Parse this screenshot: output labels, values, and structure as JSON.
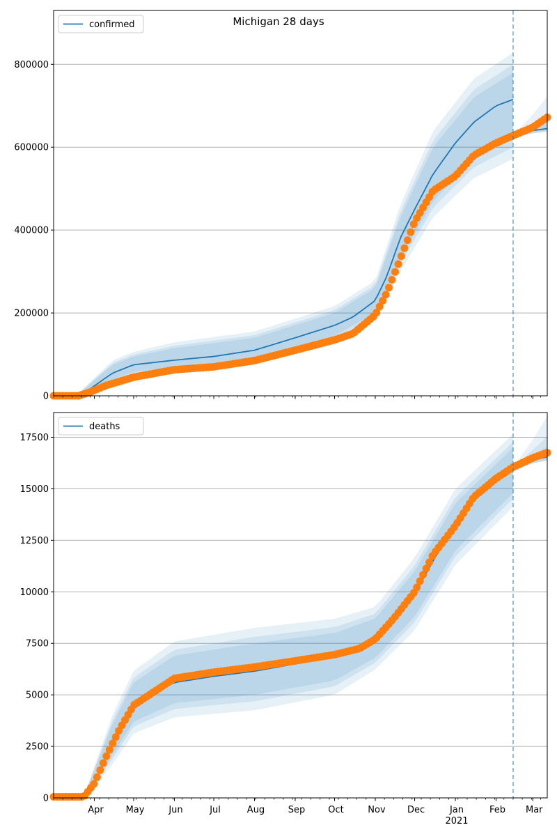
{
  "figure_title": "Michigan 28 days",
  "chart_data": [
    {
      "type": "line",
      "legend": "confirmed",
      "legend_position": "top-left",
      "grid_y": true,
      "ylim": [
        0,
        930000
      ],
      "yticks": [
        {
          "value": 0,
          "label": "0"
        },
        {
          "value": 200000,
          "label": "200000"
        },
        {
          "value": 400000,
          "label": "400000"
        },
        {
          "value": 600000,
          "label": "600000"
        },
        {
          "value": 800000,
          "label": "800000"
        }
      ],
      "model_line": {
        "x": [
          "2020-03-01",
          "2020-03-18",
          "2020-03-28",
          "2020-04-15",
          "2020-05-01",
          "2020-06-01",
          "2020-07-01",
          "2020-08-01",
          "2020-09-01",
          "2020-10-01",
          "2020-10-15",
          "2020-11-01",
          "2020-11-10",
          "2020-11-20",
          "2020-12-01",
          "2020-12-15",
          "2021-01-01",
          "2021-01-15",
          "2021-02-01",
          "2021-02-14"
        ],
        "y": [
          0,
          0,
          15000,
          55000,
          75000,
          86000,
          95000,
          110000,
          140000,
          170000,
          190000,
          230000,
          290000,
          380000,
          450000,
          535000,
          610000,
          660000,
          700000,
          715000
        ]
      },
      "model_band_median_upper": [
        [
          "2020-03-18",
          0
        ],
        [
          "2020-04-15",
          75000
        ],
        [
          "2020-05-01",
          95000
        ],
        [
          "2020-06-01",
          115000
        ],
        [
          "2020-08-01",
          140000
        ],
        [
          "2020-10-01",
          200000
        ],
        [
          "2020-11-01",
          260000
        ],
        [
          "2020-11-20",
          430000
        ],
        [
          "2020-12-15",
          600000
        ],
        [
          "2021-01-15",
          720000
        ],
        [
          "2021-02-14",
          780000
        ]
      ],
      "model_band_median_lower": [
        [
          "2020-03-18",
          0
        ],
        [
          "2020-04-15",
          40000
        ],
        [
          "2020-05-01",
          58000
        ],
        [
          "2020-06-01",
          68000
        ],
        [
          "2020-08-01",
          90000
        ],
        [
          "2020-10-01",
          145000
        ],
        [
          "2020-11-01",
          200000
        ],
        [
          "2020-11-20",
          330000
        ],
        [
          "2020-12-15",
          470000
        ],
        [
          "2021-01-15",
          570000
        ],
        [
          "2021-02-14",
          620000
        ]
      ],
      "observed_confirmed_x": [
        "2020-03-01",
        "2020-03-20",
        "2020-03-28",
        "2020-04-10",
        "2020-05-01",
        "2020-06-01",
        "2020-07-01",
        "2020-08-01",
        "2020-09-01",
        "2020-10-01",
        "2020-10-15",
        "2020-11-01",
        "2020-11-10",
        "2020-11-20",
        "2020-12-01",
        "2020-12-15",
        "2021-01-01",
        "2021-01-15",
        "2021-02-01",
        "2021-02-14",
        "2021-03-01",
        "2021-03-12"
      ],
      "observed_confirmed_y": [
        0,
        0,
        8000,
        25000,
        45000,
        63000,
        70000,
        85000,
        110000,
        135000,
        150000,
        195000,
        250000,
        330000,
        420000,
        495000,
        530000,
        580000,
        610000,
        628000,
        648000,
        672000
      ],
      "extension_line": {
        "x": [
          "2021-02-14",
          "2021-03-01",
          "2021-03-12"
        ],
        "y": [
          630000,
          640000,
          645000
        ]
      },
      "vline": "2021-02-14"
    },
    {
      "type": "line",
      "legend": "deaths",
      "legend_position": "top-left",
      "grid_y": true,
      "ylim": [
        0,
        18700
      ],
      "yticks": [
        {
          "value": 0,
          "label": "0"
        },
        {
          "value": 2500,
          "label": "2500"
        },
        {
          "value": 5000,
          "label": "5000"
        },
        {
          "value": 7500,
          "label": "7500"
        },
        {
          "value": 10000,
          "label": "10000"
        },
        {
          "value": 12500,
          "label": "12500"
        },
        {
          "value": 15000,
          "label": "15000"
        },
        {
          "value": 17500,
          "label": "17500"
        }
      ],
      "model_line": {
        "x": [
          "2020-03-01",
          "2020-03-25",
          "2020-04-01",
          "2020-04-15",
          "2020-05-01",
          "2020-06-01",
          "2020-07-01",
          "2020-08-01",
          "2020-09-01",
          "2020-10-01",
          "2020-10-20",
          "2020-11-01",
          "2020-11-15",
          "2020-12-01",
          "2020-12-15",
          "2021-01-01",
          "2021-01-15",
          "2021-02-01",
          "2021-02-14"
        ],
        "y": [
          0,
          0,
          600,
          2800,
          4600,
          5600,
          5900,
          6150,
          6500,
          6850,
          7150,
          7700,
          8600,
          9900,
          11500,
          13300,
          14700,
          15700,
          16000
        ]
      },
      "model_band_median_upper": [
        [
          "2020-03-25",
          200
        ],
        [
          "2020-04-15",
          3600
        ],
        [
          "2020-05-01",
          5600
        ],
        [
          "2020-06-01",
          6900
        ],
        [
          "2020-08-01",
          7500
        ],
        [
          "2020-10-01",
          8000
        ],
        [
          "2020-11-01",
          8700
        ],
        [
          "2020-12-01",
          11000
        ],
        [
          "2021-01-01",
          14300
        ],
        [
          "2021-02-14",
          17000
        ]
      ],
      "model_band_median_lower": [
        [
          "2020-03-25",
          0
        ],
        [
          "2020-04-15",
          2100
        ],
        [
          "2020-05-01",
          3700
        ],
        [
          "2020-06-01",
          4600
        ],
        [
          "2020-08-01",
          5000
        ],
        [
          "2020-10-01",
          5700
        ],
        [
          "2020-11-01",
          6800
        ],
        [
          "2020-12-01",
          8800
        ],
        [
          "2021-01-01",
          12000
        ],
        [
          "2021-02-14",
          14800
        ]
      ],
      "observed_deaths_x": [
        "2020-03-01",
        "2020-03-24",
        "2020-04-01",
        "2020-04-10",
        "2020-04-20",
        "2020-05-01",
        "2020-06-01",
        "2020-07-01",
        "2020-08-01",
        "2020-09-01",
        "2020-10-01",
        "2020-10-20",
        "2020-11-01",
        "2020-11-15",
        "2020-12-01",
        "2020-12-15",
        "2021-01-01",
        "2021-01-15",
        "2021-02-01",
        "2021-02-14",
        "2021-03-01",
        "2021-03-12"
      ],
      "observed_deaths_y": [
        50,
        50,
        700,
        2000,
        3300,
        4500,
        5800,
        6100,
        6350,
        6650,
        6950,
        7250,
        7700,
        8700,
        10000,
        11800,
        13200,
        14600,
        15500,
        16050,
        16500,
        16750
      ],
      "extension_line": {
        "x": [
          "2021-02-14",
          "2021-03-01",
          "2021-03-12"
        ],
        "y": [
          16050,
          16400,
          16550
        ]
      },
      "vline": "2021-02-14",
      "x_tick_labels": [
        {
          "date": "2020-04-01",
          "label": "Apr"
        },
        {
          "date": "2020-05-01",
          "label": "May"
        },
        {
          "date": "2020-06-01",
          "label": "Jun"
        },
        {
          "date": "2020-07-01",
          "label": "Jul"
        },
        {
          "date": "2020-08-01",
          "label": "Aug"
        },
        {
          "date": "2020-09-01",
          "label": "Sep"
        },
        {
          "date": "2020-10-01",
          "label": "Oct"
        },
        {
          "date": "2020-11-01",
          "label": "Nov"
        },
        {
          "date": "2020-12-01",
          "label": "Dec"
        },
        {
          "date": "2021-01-01",
          "label": "Jan"
        },
        {
          "date": "2021-02-01",
          "label": "Feb"
        },
        {
          "date": "2021-03-01",
          "label": "Mar"
        }
      ],
      "x_year_label": "2021"
    }
  ],
  "colors": {
    "model": "#1f77b4",
    "observed": "#ff7f0e",
    "band": "#1f77b4",
    "grid": "#b0b0b0"
  }
}
